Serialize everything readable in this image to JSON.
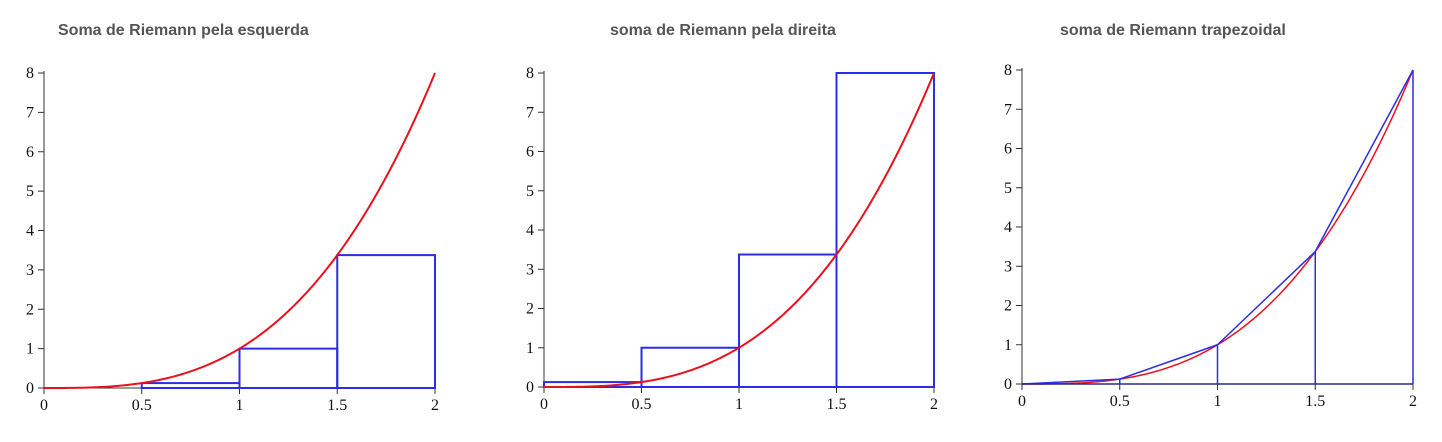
{
  "chart_data": [
    {
      "type": "line",
      "variant": "left",
      "title": "Soma de Riemann pela esquerda",
      "xlabel": "",
      "ylabel": "",
      "function": "y = x^3",
      "xlim": [
        0,
        2
      ],
      "ylim": [
        0,
        8
      ],
      "x_ticks": [
        "0",
        "0.5",
        "1",
        "1.5",
        "2"
      ],
      "y_ticks": [
        "0",
        "1",
        "2",
        "3",
        "4",
        "5",
        "6",
        "7",
        "8"
      ],
      "partition": [
        0,
        0.5,
        1,
        1.5,
        2
      ],
      "rect_heights": [
        0,
        0.125,
        1,
        3.375
      ],
      "curve_color": "#e8121e",
      "shape_color": "#2b2ee6"
    },
    {
      "type": "line",
      "variant": "right",
      "title": "soma de Riemann pela direita",
      "xlabel": "",
      "ylabel": "",
      "function": "y = x^3",
      "xlim": [
        0,
        2
      ],
      "ylim": [
        0,
        8
      ],
      "x_ticks": [
        "0",
        "0.5",
        "1",
        "1.5",
        "2"
      ],
      "y_ticks": [
        "0",
        "1",
        "2",
        "3",
        "4",
        "5",
        "6",
        "7",
        "8"
      ],
      "partition": [
        0,
        0.5,
        1,
        1.5,
        2
      ],
      "rect_heights": [
        0.125,
        1,
        3.375,
        8
      ],
      "curve_color": "#e8121e",
      "shape_color": "#2b2ee6"
    },
    {
      "type": "line",
      "variant": "trapezoid",
      "title": "soma de Riemann trapezoidal",
      "xlabel": "",
      "ylabel": "",
      "function": "y = x^3",
      "xlim": [
        0,
        2
      ],
      "ylim": [
        0,
        8
      ],
      "x_ticks": [
        "0",
        "0.5",
        "1",
        "1.5",
        "2"
      ],
      "y_ticks": [
        "0",
        "1",
        "2",
        "3",
        "4",
        "5",
        "6",
        "7",
        "8"
      ],
      "partition": [
        0,
        0.5,
        1,
        1.5,
        2
      ],
      "node_values": [
        0,
        0.125,
        1,
        3.375,
        8
      ],
      "curve_color": "#e8121e",
      "shape_color": "#2b2ee6"
    }
  ]
}
